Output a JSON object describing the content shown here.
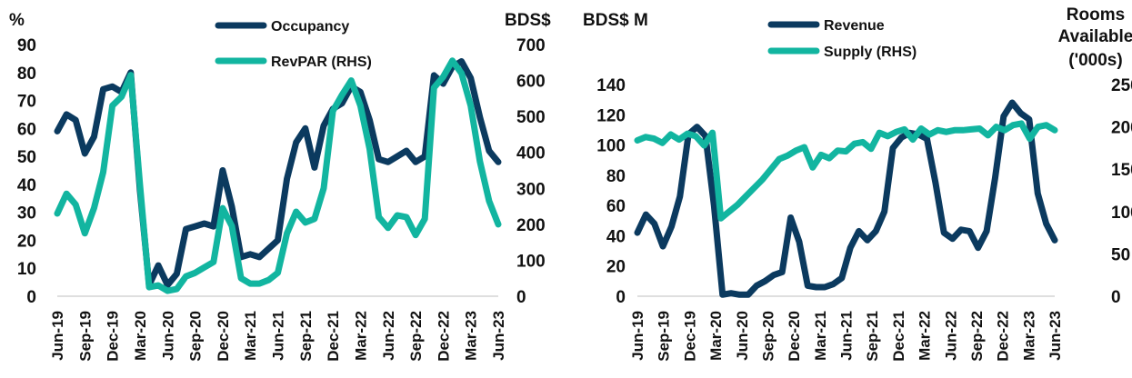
{
  "chart_data": [
    {
      "type": "line",
      "left_unit": "%",
      "right_unit": "BDS$",
      "y_left_lim": [
        0,
        90
      ],
      "y_left_ticks": [
        "0",
        "10",
        "20",
        "30",
        "40",
        "50",
        "60",
        "70",
        "80",
        "90"
      ],
      "y_right_lim": [
        0,
        700
      ],
      "y_right_ticks": [
        "0",
        "100",
        "200",
        "300",
        "400",
        "500",
        "600",
        "700"
      ],
      "x_tick_labels": [
        "Jun-19",
        "Sep-19",
        "Dec-19",
        "Mar-20",
        "Jun-20",
        "Sep-20",
        "Dec-20",
        "Mar-21",
        "Jun-21",
        "Sep-21",
        "Dec-21",
        "Mar-22",
        "Jun-22",
        "Sep-22",
        "Dec-22",
        "Mar-23",
        "Jun-23"
      ],
      "legend_position": "top",
      "series": [
        {
          "name": "Occupancy",
          "axis": "left",
          "color": "#0b3a5f",
          "values": [
            59,
            65,
            63,
            51,
            57,
            74,
            75,
            73,
            80,
            38,
            4,
            11,
            4,
            8,
            24,
            25,
            26,
            25,
            45,
            32,
            14,
            15,
            14,
            17,
            20,
            42,
            55,
            60,
            46,
            61,
            67,
            69,
            75,
            73,
            63,
            49,
            48,
            50,
            52,
            48,
            50,
            79,
            76,
            82,
            84,
            78,
            64,
            52,
            48
          ]
        },
        {
          "name": "RevPAR (RHS)",
          "axis": "right",
          "color": "#12b5a0",
          "values": [
            230,
            285,
            255,
            175,
            245,
            345,
            530,
            555,
            615,
            310,
            25,
            30,
            15,
            20,
            55,
            65,
            80,
            95,
            245,
            195,
            50,
            35,
            35,
            45,
            65,
            175,
            235,
            205,
            215,
            300,
            515,
            560,
            600,
            530,
            410,
            220,
            190,
            225,
            220,
            170,
            215,
            580,
            610,
            655,
            620,
            530,
            375,
            265,
            200
          ]
        }
      ]
    },
    {
      "type": "line",
      "left_unit": "BDS$ M",
      "right_unit": "Rooms Available ('000s)",
      "y_left_lim": [
        0,
        140
      ],
      "y_left_ticks": [
        "0",
        "20",
        "40",
        "60",
        "80",
        "100",
        "120",
        "140"
      ],
      "y_right_lim": [
        0,
        250
      ],
      "y_right_ticks": [
        "0",
        "50",
        "100",
        "150",
        "200",
        "250"
      ],
      "x_tick_labels": [
        "Jun-19",
        "Sep-19",
        "Dec-19",
        "Mar-20",
        "Jun-20",
        "Sep-20",
        "Dec-20",
        "Mar-21",
        "Jun-21",
        "Sep-21",
        "Dec-21",
        "Mar-22",
        "Jun-22",
        "Sep-22",
        "Dec-22",
        "Mar-23",
        "Jun-23"
      ],
      "legend_position": "top",
      "series": [
        {
          "name": "Revenue",
          "axis": "left",
          "color": "#0b3a5f",
          "values": [
            42,
            54,
            48,
            33,
            46,
            66,
            107,
            112,
            106,
            60,
            1,
            2,
            1,
            1,
            7,
            10,
            14,
            16,
            52,
            36,
            7,
            6,
            6,
            8,
            12,
            32,
            43,
            37,
            43,
            56,
            98,
            105,
            108,
            107,
            104,
            75,
            42,
            38,
            44,
            43,
            32,
            43,
            78,
            119,
            128,
            121,
            117,
            68,
            48,
            37
          ]
        },
        {
          "name": "Supply (RHS)",
          "axis": "right",
          "color": "#12b5a0",
          "values": [
            184,
            188,
            186,
            181,
            191,
            185,
            192,
            189,
            178,
            193,
            92,
            100,
            108,
            118,
            128,
            138,
            150,
            162,
            166,
            172,
            176,
            152,
            167,
            163,
            172,
            171,
            180,
            182,
            174,
            193,
            189,
            194,
            197,
            185,
            198,
            191,
            196,
            194,
            196,
            196,
            197,
            198,
            190,
            200,
            196,
            202,
            204,
            186,
            200,
            202,
            196
          ]
        }
      ]
    }
  ]
}
